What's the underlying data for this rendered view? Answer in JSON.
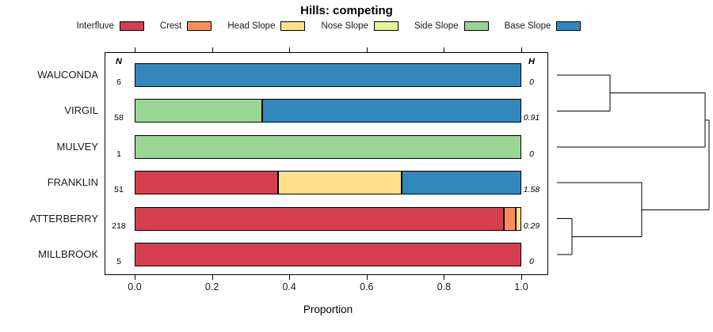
{
  "chart_data": {
    "type": "bar",
    "orientation": "horizontal",
    "stacked": true,
    "title": "Hills: competing",
    "xlabel": "Proportion",
    "n_header": "N",
    "h_header": "H",
    "xlim": [
      0,
      1
    ],
    "xticks": [
      0.0,
      0.2,
      0.4,
      0.6,
      0.8,
      1.0
    ],
    "grid": false,
    "legend_position": "top",
    "categories": [
      "WAUCONDA",
      "VIRGIL",
      "MULVEY",
      "FRANKLIN",
      "ATTERBERRY",
      "MILLBROOK"
    ],
    "n_values": [
      6,
      58,
      1,
      51,
      218,
      5
    ],
    "h_values": [
      "0",
      "0.91",
      "0",
      "1.58",
      "0.29",
      "0"
    ],
    "series": [
      {
        "name": "Interfluve",
        "color": "#D53E4F",
        "values": [
          0,
          0,
          0,
          0.37,
          0.955,
          1.0
        ]
      },
      {
        "name": "Crest",
        "color": "#FC8D59",
        "values": [
          0,
          0,
          0,
          0,
          0.03,
          0
        ]
      },
      {
        "name": "Head Slope",
        "color": "#FEE08B",
        "values": [
          0,
          0,
          0,
          0.32,
          0.015,
          0
        ]
      },
      {
        "name": "Nose Slope",
        "color": "#E6F598",
        "values": [
          0,
          0,
          0,
          0,
          0,
          0
        ]
      },
      {
        "name": "Side Slope",
        "color": "#99D594",
        "values": [
          0,
          0.33,
          1.0,
          0,
          0,
          0
        ]
      },
      {
        "name": "Base Slope",
        "color": "#3288BD",
        "values": [
          1.0,
          0.67,
          0,
          0.31,
          0,
          0
        ]
      }
    ],
    "dendrogram": {
      "position": "right",
      "tree": {
        "h": 1.0,
        "children": [
          {
            "h": 0.974,
            "children": [
              {
                "h": 0.35,
                "children": [
                  {
                    "leaf": "WAUCONDA"
                  },
                  {
                    "leaf": "VIRGIL"
                  }
                ]
              },
              {
                "leaf": "MULVEY"
              }
            ]
          },
          {
            "h": 0.557,
            "children": [
              {
                "leaf": "FRANKLIN"
              },
              {
                "h": 0.1,
                "children": [
                  {
                    "leaf": "ATTERBERRY"
                  },
                  {
                    "leaf": "MILLBROOK"
                  }
                ]
              }
            ]
          }
        ]
      }
    }
  }
}
